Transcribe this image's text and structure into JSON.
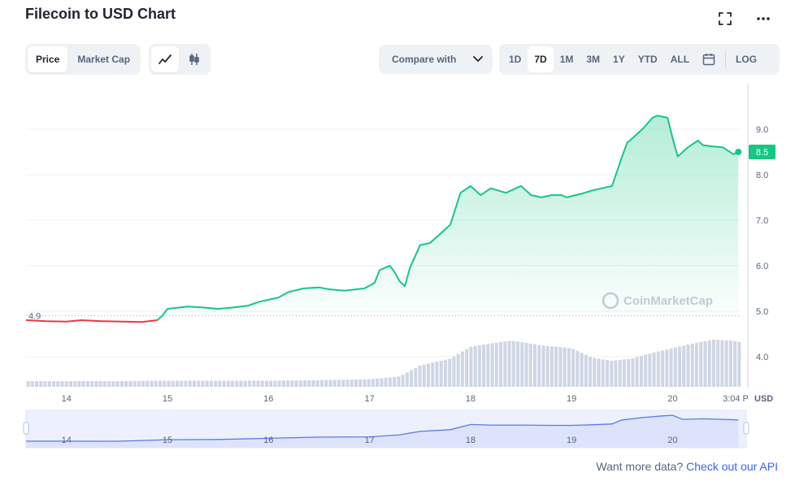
{
  "header": {
    "title": "Filecoin to USD Chart",
    "fullscreen_icon": "expand-icon",
    "more_icon": "more-horizontal-icon"
  },
  "toolbar": {
    "metric_tabs": [
      {
        "label": "Price",
        "active": true
      },
      {
        "label": "Market Cap",
        "active": false
      }
    ],
    "chart_type_icons": [
      "line-chart-icon",
      "candlestick-icon"
    ],
    "compare_label": "Compare with",
    "ranges": [
      {
        "label": "1D",
        "active": false
      },
      {
        "label": "7D",
        "active": true
      },
      {
        "label": "1M",
        "active": false
      },
      {
        "label": "3M",
        "active": false
      },
      {
        "label": "1Y",
        "active": false
      },
      {
        "label": "YTD",
        "active": false
      },
      {
        "label": "ALL",
        "active": false
      }
    ],
    "calendar_icon": "calendar-icon",
    "log_label": "LOG"
  },
  "colors": {
    "up": "#16c784",
    "down": "#ea3943",
    "volume": "#cfd6e4",
    "navigator": "#5b7ae6"
  },
  "chart_data": {
    "type": "line",
    "currency_label": "USD",
    "watermark": "CoinMarketCap",
    "yticks": [
      4.0,
      5.0,
      6.0,
      7.0,
      8.0,
      9.0
    ],
    "ylim": [
      3.3,
      10.0
    ],
    "baseline": 4.9,
    "baseline_label": "4.9",
    "last_value": 8.5,
    "last_value_label": "8.5",
    "xlim": [
      13.6,
      20.68
    ],
    "xticks": [
      "14",
      "15",
      "16",
      "17",
      "18",
      "19",
      "20"
    ],
    "x_end_label": "3:04 P",
    "series": [
      {
        "x": [
          13.6,
          13.8,
          14.0,
          14.15,
          14.35,
          14.55,
          14.75,
          14.9,
          14.95,
          15.0,
          15.2,
          15.35,
          15.5,
          15.65,
          15.8,
          15.9,
          16.0,
          16.1,
          16.2,
          16.35,
          16.5,
          16.6,
          16.75,
          16.95,
          17.05,
          17.1,
          17.2,
          17.25,
          17.3,
          17.35,
          17.4,
          17.5,
          17.6,
          17.7,
          17.8,
          17.9,
          18.0,
          18.1,
          18.2,
          18.35,
          18.5,
          18.6,
          18.7,
          18.8,
          18.9,
          18.95,
          19.1,
          19.2,
          19.3,
          19.4,
          19.5,
          19.55,
          19.6,
          19.7,
          19.8,
          19.85,
          19.95,
          20.0,
          20.05,
          20.15,
          20.25,
          20.3,
          20.4,
          20.5,
          20.6,
          20.65
        ],
        "values": [
          4.8,
          4.78,
          4.77,
          4.8,
          4.78,
          4.77,
          4.76,
          4.8,
          4.9,
          5.05,
          5.1,
          5.08,
          5.05,
          5.08,
          5.12,
          5.2,
          5.25,
          5.3,
          5.42,
          5.5,
          5.52,
          5.48,
          5.45,
          5.5,
          5.62,
          5.9,
          6.0,
          5.85,
          5.65,
          5.55,
          5.95,
          6.45,
          6.5,
          6.7,
          6.9,
          7.6,
          7.75,
          7.55,
          7.7,
          7.6,
          7.75,
          7.55,
          7.5,
          7.55,
          7.55,
          7.5,
          7.58,
          7.65,
          7.7,
          7.75,
          8.4,
          8.7,
          8.8,
          9.0,
          9.25,
          9.3,
          9.25,
          8.8,
          8.4,
          8.6,
          8.75,
          8.65,
          8.62,
          8.6,
          8.45,
          8.5
        ]
      }
    ],
    "volume": {
      "x": [
        13.6,
        14.0,
        14.5,
        15.0,
        15.5,
        16.0,
        16.5,
        17.0,
        17.3,
        17.5,
        17.8,
        18.0,
        18.2,
        18.4,
        18.5,
        18.7,
        19.0,
        19.2,
        19.4,
        19.6,
        19.8,
        20.0,
        20.2,
        20.4,
        20.6,
        20.65
      ],
      "values": [
        0.12,
        0.12,
        0.12,
        0.13,
        0.13,
        0.13,
        0.14,
        0.16,
        0.22,
        0.45,
        0.6,
        0.85,
        0.92,
        0.98,
        0.95,
        0.88,
        0.82,
        0.62,
        0.55,
        0.6,
        0.72,
        0.82,
        0.92,
        1.0,
        0.98,
        0.95
      ]
    },
    "navigator": {
      "x": [
        13.6,
        14.0,
        14.5,
        15.0,
        15.5,
        16.0,
        16.5,
        17.0,
        17.3,
        17.5,
        17.8,
        18.0,
        18.2,
        18.5,
        18.8,
        19.0,
        19.2,
        19.4,
        19.5,
        19.7,
        19.9,
        20.0,
        20.1,
        20.3,
        20.5,
        20.65
      ],
      "values": [
        4.8,
        4.8,
        4.78,
        5.05,
        5.1,
        5.3,
        5.5,
        5.55,
        5.9,
        6.5,
        6.8,
        7.7,
        7.6,
        7.6,
        7.55,
        7.55,
        7.65,
        7.8,
        8.5,
        8.9,
        9.2,
        9.3,
        8.6,
        8.7,
        8.6,
        8.5
      ]
    }
  },
  "footer": {
    "prefix": "Want more data?",
    "link": "Check out our API"
  }
}
